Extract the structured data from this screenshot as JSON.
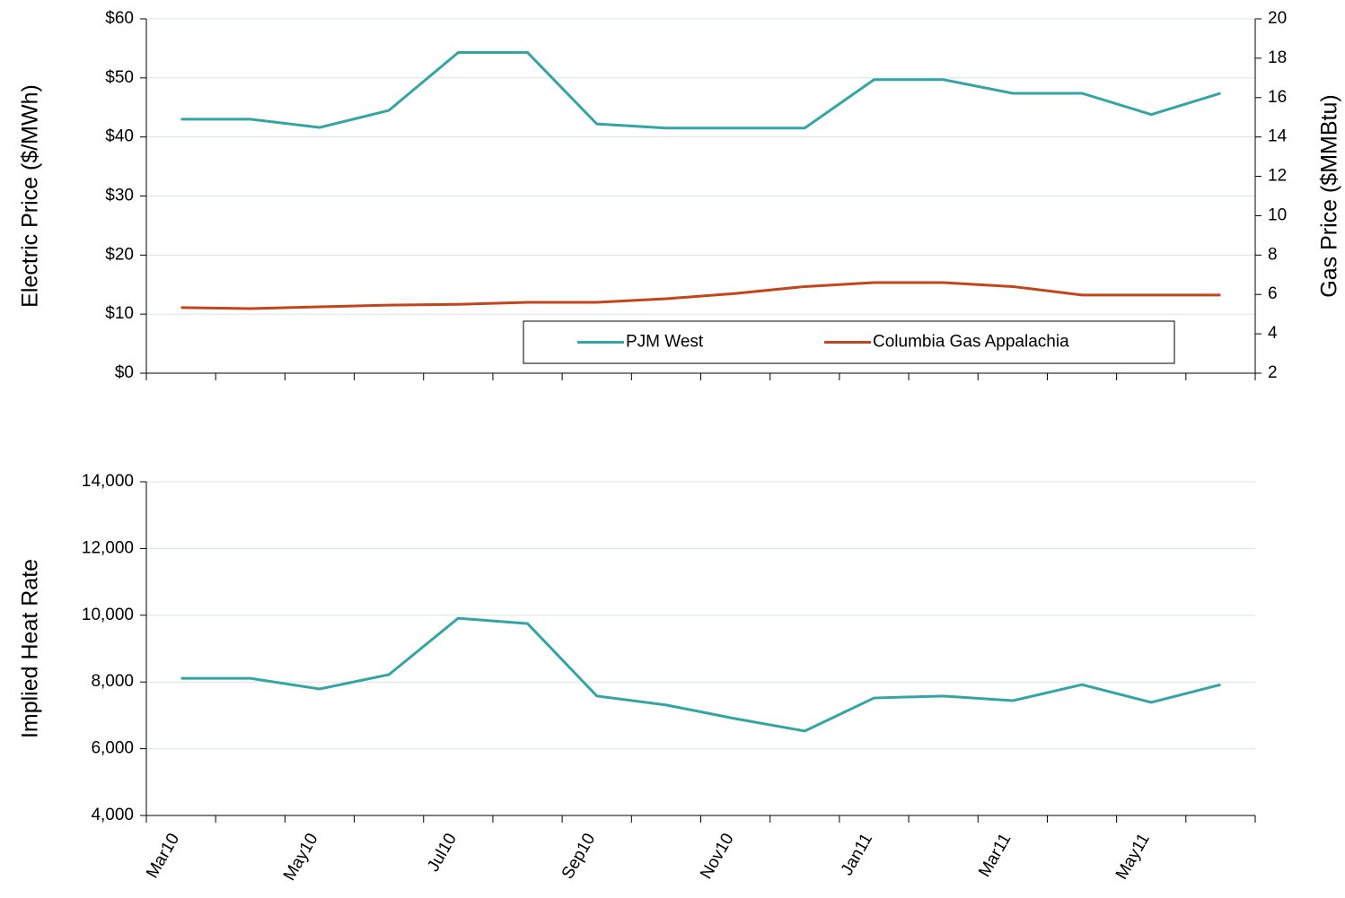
{
  "chart_data": [
    {
      "type": "line",
      "y_label": "Electric Price ($/MWh)",
      "y2_label": "Gas Price ($MMBtu)",
      "ylim": [
        0,
        60
      ],
      "yticks": [
        {
          "value": 0,
          "label": "$0"
        },
        {
          "value": 10,
          "label": "$10"
        },
        {
          "value": 20,
          "label": "$20"
        },
        {
          "value": 30,
          "label": "$30"
        },
        {
          "value": 40,
          "label": "$40"
        },
        {
          "value": 50,
          "label": "$50"
        },
        {
          "value": 60,
          "label": "$60"
        }
      ],
      "y2lim": [
        2,
        20
      ],
      "y2ticks": [
        2,
        4,
        6,
        8,
        10,
        12,
        14,
        16,
        18,
        20
      ],
      "grid": true,
      "legend": "bottom-right",
      "series": [
        {
          "name": "PJM West",
          "color": "#33a5a2",
          "values": [
            43.0,
            43.0,
            41.6,
            44.5,
            54.3,
            54.3,
            42.2,
            41.5,
            41.5,
            41.5,
            49.7,
            49.7,
            47.4,
            47.4,
            43.8,
            47.4
          ]
        },
        {
          "name": "Columbia Gas Appalachia",
          "color": "#c4441c",
          "axis": "y2",
          "values": [
            5.33,
            5.28,
            5.37,
            5.46,
            5.5,
            5.6,
            5.6,
            5.78,
            6.05,
            6.4,
            6.6,
            6.6,
            6.4,
            5.97,
            5.97,
            5.97
          ]
        }
      ]
    },
    {
      "type": "line",
      "y_label": "Implied Heat Rate",
      "categories": [
        "Mar10",
        null,
        "May10",
        null,
        "Jul10",
        null,
        "Sep10",
        null,
        "Nov10",
        null,
        "Jan11",
        null,
        "Mar11",
        null,
        "May11",
        null
      ],
      "values": [
        8110,
        8110,
        7790,
        8220,
        9910,
        9750,
        7580,
        7310,
        6900,
        6530,
        7520,
        7580,
        7440,
        7920,
        7390,
        7920
      ],
      "color": "#33a5a2",
      "ylim": [
        4000,
        14000
      ],
      "yticks": [
        {
          "value": 4000,
          "label": "4,000"
        },
        {
          "value": 6000,
          "label": "6,000"
        },
        {
          "value": 8000,
          "label": "8,000"
        },
        {
          "value": 10000,
          "label": "10,000"
        },
        {
          "value": 12000,
          "label": "12,000"
        },
        {
          "value": 14000,
          "label": "14,000"
        }
      ],
      "grid": true
    }
  ]
}
